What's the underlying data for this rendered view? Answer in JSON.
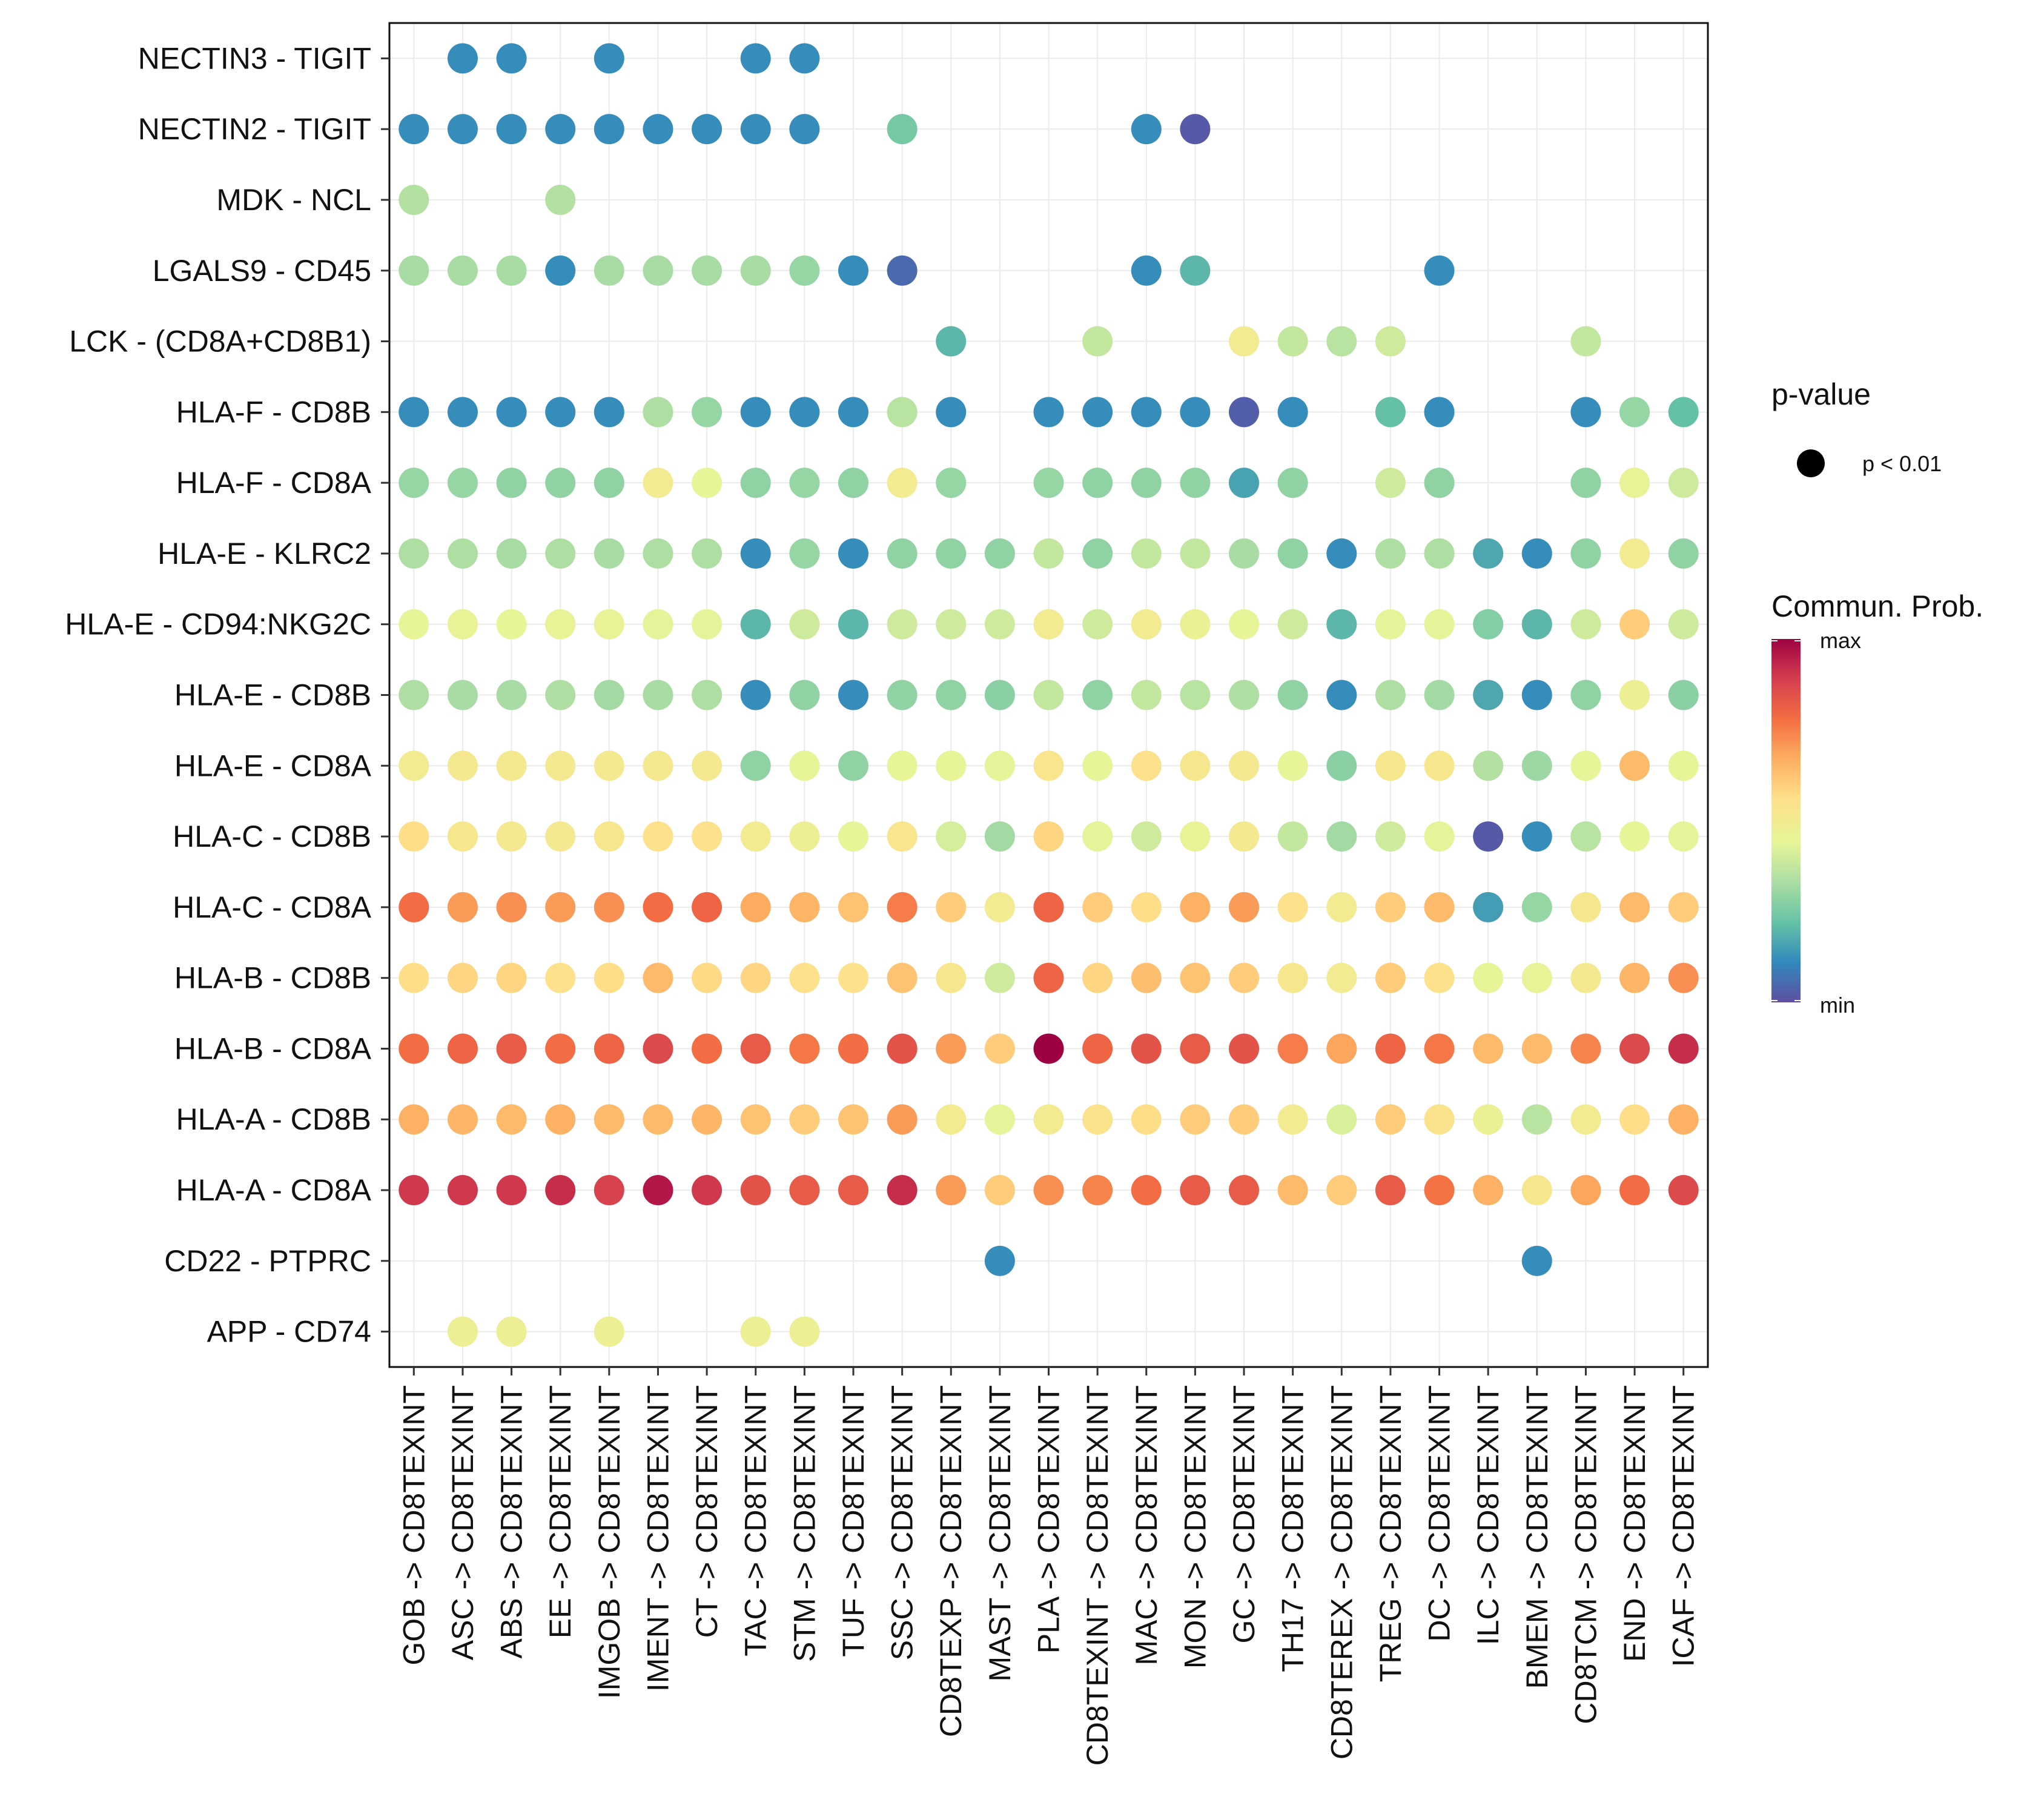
{
  "chart_data": {
    "type": "dot",
    "title": "",
    "xlabel": "",
    "ylabel": "",
    "x_categories": [
      "GOB -> CD8TEXINT",
      "ASC -> CD8TEXINT",
      "ABS -> CD8TEXINT",
      "EE -> CD8TEXINT",
      "IMGOB -> CD8TEXINT",
      "IMENT -> CD8TEXINT",
      "CT -> CD8TEXINT",
      "TAC -> CD8TEXINT",
      "STM -> CD8TEXINT",
      "TUF -> CD8TEXINT",
      "SSC -> CD8TEXINT",
      "CD8TEXP -> CD8TEXINT",
      "MAST -> CD8TEXINT",
      "PLA -> CD8TEXINT",
      "CD8TEXINT -> CD8TEXINT",
      "MAC -> CD8TEXINT",
      "MON -> CD8TEXINT",
      "GC -> CD8TEXINT",
      "TH17 -> CD8TEXINT",
      "CD8TEREX -> CD8TEXINT",
      "TREG -> CD8TEXINT",
      "DC -> CD8TEXINT",
      "ILC -> CD8TEXINT",
      "BMEM -> CD8TEXINT",
      "CD8TCM -> CD8TEXINT",
      "END -> CD8TEXINT",
      "ICAF -> CD8TEXINT"
    ],
    "y_categories": [
      "NECTIN3 - TIGIT",
      "NECTIN2 - TIGIT",
      "MDK - NCL",
      "LGALS9 - CD45",
      "LCK - (CD8A+CD8B1)",
      "HLA-F - CD8B",
      "HLA-F - CD8A",
      "HLA-E - KLRC2",
      "HLA-E - CD94:NKG2C",
      "HLA-E - CD8B",
      "HLA-E - CD8A",
      "HLA-C - CD8B",
      "HLA-C - CD8A",
      "HLA-B - CD8B",
      "HLA-B - CD8A",
      "HLA-A - CD8B",
      "HLA-A - CD8A",
      "CD22 - PTPRC",
      "APP - CD74"
    ],
    "value_scale": "relative communication probability, 0 = min, 1 = max",
    "values": [
      [
        null,
        0.12,
        0.12,
        null,
        0.12,
        null,
        null,
        0.12,
        0.12,
        null,
        null,
        null,
        null,
        null,
        null,
        null,
        null,
        null,
        null,
        null,
        null,
        null,
        null,
        null,
        null,
        null,
        null
      ],
      [
        0.12,
        0.12,
        0.12,
        0.12,
        0.12,
        0.12,
        0.12,
        0.12,
        0.12,
        null,
        0.25,
        null,
        null,
        null,
        null,
        0.12,
        0.02,
        null,
        null,
        null,
        null,
        null,
        null,
        null,
        null,
        null,
        null
      ],
      [
        0.35,
        null,
        null,
        0.35,
        null,
        null,
        null,
        null,
        null,
        null,
        null,
        null,
        null,
        null,
        null,
        null,
        null,
        null,
        null,
        null,
        null,
        null,
        null,
        null,
        null,
        null,
        null
      ],
      [
        0.33,
        0.33,
        0.33,
        0.12,
        0.33,
        0.33,
        0.33,
        0.33,
        0.3,
        0.12,
        0.05,
        null,
        null,
        null,
        null,
        0.12,
        0.2,
        null,
        null,
        null,
        null,
        0.12,
        null,
        null,
        null,
        null,
        null
      ],
      [
        null,
        null,
        null,
        null,
        null,
        null,
        null,
        null,
        null,
        null,
        null,
        0.2,
        null,
        null,
        0.38,
        null,
        null,
        0.5,
        0.38,
        0.36,
        0.4,
        null,
        null,
        null,
        0.38,
        null,
        null
      ],
      [
        0.12,
        0.12,
        0.12,
        0.12,
        0.12,
        0.34,
        0.3,
        0.12,
        0.12,
        0.12,
        0.36,
        0.12,
        null,
        0.12,
        0.12,
        0.12,
        0.12,
        0.03,
        0.12,
        null,
        0.22,
        0.12,
        null,
        null,
        0.12,
        0.3,
        0.22
      ],
      [
        0.3,
        0.3,
        0.29,
        0.29,
        0.29,
        0.5,
        0.45,
        0.29,
        0.3,
        0.29,
        0.5,
        0.3,
        null,
        0.3,
        0.29,
        0.29,
        0.29,
        0.16,
        0.29,
        null,
        0.4,
        0.29,
        null,
        null,
        0.29,
        0.46,
        0.4
      ],
      [
        0.34,
        0.34,
        0.33,
        0.34,
        0.33,
        0.34,
        0.34,
        0.12,
        0.3,
        0.12,
        0.29,
        0.29,
        0.29,
        0.38,
        0.29,
        0.38,
        0.38,
        0.33,
        0.29,
        0.12,
        0.34,
        0.34,
        0.17,
        0.12,
        0.29,
        0.5,
        0.29
      ],
      [
        0.45,
        0.46,
        0.45,
        0.46,
        0.46,
        0.44,
        0.44,
        0.2,
        0.4,
        0.2,
        0.4,
        0.4,
        0.4,
        0.5,
        0.4,
        0.5,
        0.47,
        0.45,
        0.4,
        0.2,
        0.44,
        0.44,
        0.27,
        0.2,
        0.4,
        0.6,
        0.4
      ],
      [
        0.34,
        0.33,
        0.33,
        0.34,
        0.32,
        0.33,
        0.34,
        0.12,
        0.29,
        0.12,
        0.29,
        0.29,
        0.28,
        0.38,
        0.29,
        0.38,
        0.36,
        0.34,
        0.29,
        0.12,
        0.34,
        0.32,
        0.17,
        0.12,
        0.29,
        0.48,
        0.28
      ],
      [
        0.5,
        0.51,
        0.51,
        0.51,
        0.51,
        0.51,
        0.51,
        0.29,
        0.45,
        0.29,
        0.45,
        0.45,
        0.44,
        0.53,
        0.45,
        0.55,
        0.52,
        0.51,
        0.45,
        0.28,
        0.52,
        0.52,
        0.35,
        0.31,
        0.45,
        0.64,
        0.45
      ],
      [
        0.56,
        0.52,
        0.51,
        0.51,
        0.52,
        0.55,
        0.55,
        0.5,
        0.48,
        0.45,
        0.53,
        0.41,
        0.32,
        0.58,
        0.44,
        0.4,
        0.46,
        0.51,
        0.38,
        0.32,
        0.4,
        0.44,
        0.02,
        0.12,
        0.36,
        0.45,
        0.44
      ],
      [
        0.78,
        0.7,
        0.72,
        0.7,
        0.72,
        0.78,
        0.8,
        0.67,
        0.65,
        0.62,
        0.75,
        0.6,
        0.5,
        0.8,
        0.6,
        0.56,
        0.66,
        0.7,
        0.55,
        0.5,
        0.6,
        0.64,
        0.15,
        0.3,
        0.52,
        0.64,
        0.6
      ],
      [
        0.56,
        0.58,
        0.58,
        0.55,
        0.56,
        0.64,
        0.57,
        0.58,
        0.55,
        0.55,
        0.62,
        0.52,
        0.4,
        0.8,
        0.58,
        0.63,
        0.62,
        0.6,
        0.52,
        0.5,
        0.6,
        0.55,
        0.45,
        0.46,
        0.51,
        0.65,
        0.72
      ],
      [
        0.78,
        0.8,
        0.82,
        0.78,
        0.8,
        0.86,
        0.78,
        0.82,
        0.76,
        0.78,
        0.84,
        0.7,
        0.6,
        1.0,
        0.8,
        0.84,
        0.82,
        0.84,
        0.75,
        0.68,
        0.8,
        0.76,
        0.64,
        0.64,
        0.74,
        0.86,
        0.92
      ],
      [
        0.66,
        0.65,
        0.64,
        0.66,
        0.64,
        0.64,
        0.65,
        0.62,
        0.6,
        0.62,
        0.7,
        0.5,
        0.44,
        0.5,
        0.54,
        0.56,
        0.6,
        0.6,
        0.5,
        0.42,
        0.6,
        0.54,
        0.47,
        0.36,
        0.5,
        0.56,
        0.66
      ],
      [
        0.9,
        0.9,
        0.9,
        0.92,
        0.88,
        0.96,
        0.9,
        0.84,
        0.82,
        0.82,
        0.92,
        0.7,
        0.6,
        0.72,
        0.74,
        0.78,
        0.82,
        0.82,
        0.64,
        0.6,
        0.82,
        0.77,
        0.66,
        0.52,
        0.68,
        0.78,
        0.86
      ],
      [
        null,
        null,
        null,
        null,
        null,
        null,
        null,
        null,
        null,
        null,
        null,
        null,
        0.12,
        null,
        null,
        null,
        null,
        null,
        null,
        null,
        null,
        null,
        null,
        0.12,
        null,
        null,
        null
      ],
      [
        null,
        0.48,
        0.48,
        null,
        0.48,
        null,
        null,
        0.48,
        0.48,
        null,
        null,
        null,
        null,
        null,
        null,
        null,
        null,
        null,
        null,
        null,
        null,
        null,
        null,
        null,
        null,
        null,
        null
      ]
    ],
    "palette": [
      "#5E4FA2",
      "#3288BD",
      "#66C2A5",
      "#ABDDA4",
      "#E6F598",
      "#FEE08B",
      "#FDAE61",
      "#F46D43",
      "#D53E4F",
      "#9E0142"
    ],
    "legend": {
      "pvalue_title": "p-value",
      "pvalue_label": "p < 0.01",
      "color_title": "Commun. Prob.",
      "color_max_label": "max",
      "color_min_label": "min",
      "placement": "right"
    }
  }
}
